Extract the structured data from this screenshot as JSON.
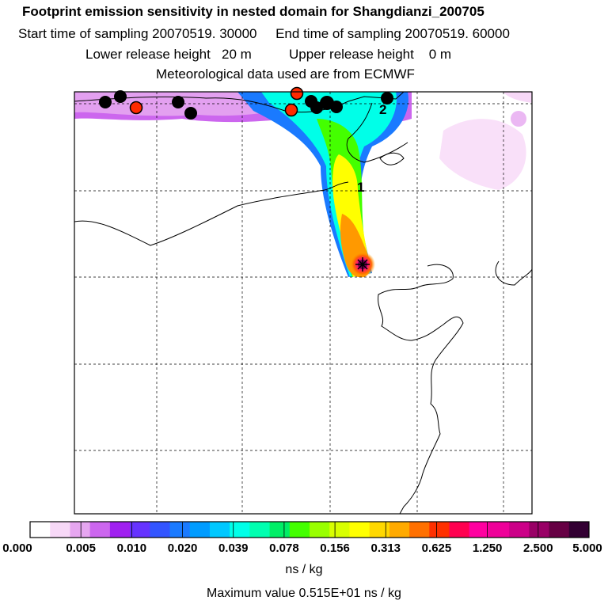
{
  "header": {
    "title": "Footprint emission sensitivity in nested domain for Shangdianzi_200705",
    "sampling": "Start time of sampling 20070519. 30000     End time of sampling 20070519. 60000",
    "release": "Lower release height   20 m          Upper release height    0 m",
    "met": "Meteorological data used are from ECMWF"
  },
  "map": {
    "markers_labels": [
      "1",
      "2"
    ],
    "colors": {
      "black_marker": "#000000",
      "red_marker": "#ff2a00"
    }
  },
  "legend": {
    "ticks": [
      "0.000",
      "0.005",
      "0.010",
      "0.020",
      "0.039",
      "0.078",
      "0.156",
      "0.313",
      "0.625",
      "1.250",
      "2.500",
      "5.000"
    ],
    "colors": [
      "#ffffff",
      "#f7d8f7",
      "#e6a6f0",
      "#cc66ee",
      "#a020f0",
      "#6633ff",
      "#3355ff",
      "#1a7aff",
      "#009cff",
      "#00c8ff",
      "#00ffe8",
      "#00ffb0",
      "#00ee66",
      "#44ff00",
      "#99ff00",
      "#d8ff00",
      "#ffff00",
      "#ffd800",
      "#ffaa00",
      "#ff7000",
      "#ff3000",
      "#ff0050",
      "#ff00a0",
      "#ee0099",
      "#cc0088",
      "#990066",
      "#660044",
      "#330033"
    ],
    "unit": "ns / kg",
    "max_value": "Maximum value  0.515E+01 ns / kg"
  }
}
